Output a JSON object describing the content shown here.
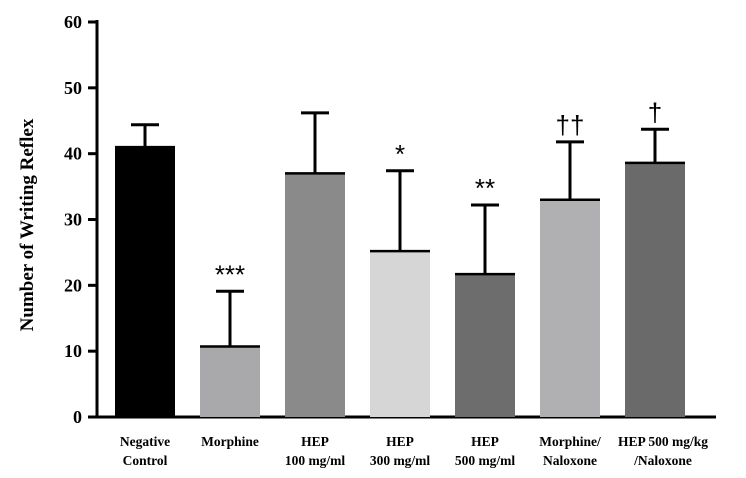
{
  "chart_data": {
    "type": "bar",
    "title": "",
    "xlabel": "",
    "ylabel": "Number of Writing Reflex",
    "ylim": [
      0,
      60
    ],
    "yticks": [
      0,
      10,
      20,
      30,
      40,
      50,
      60
    ],
    "grid": false,
    "legend": "none",
    "categories": [
      [
        "Negative",
        "Control"
      ],
      [
        "Morphine"
      ],
      [
        "HEP",
        "100 mg/ml"
      ],
      [
        "HEP",
        "300 mg/ml"
      ],
      [
        "HEP",
        "500 mg/ml"
      ],
      [
        "Morphine/",
        "Naloxone"
      ],
      [
        "HEP 500 mg/kg",
        "/Naloxone"
      ]
    ],
    "values": [
      41,
      10.7,
      37,
      25.2,
      21.7,
      33,
      38.6
    ],
    "errors": [
      3.4,
      8.4,
      9.2,
      12.2,
      10.5,
      8.8,
      5.1
    ],
    "significance": [
      "",
      "***",
      "",
      "*",
      "**",
      "††",
      "†"
    ],
    "colors": [
      "#000000",
      "#a9a9ac",
      "#8a8a8a",
      "#d6d6d6",
      "#6d6d6d",
      "#b0b0b2",
      "#6a6a6a"
    ]
  }
}
